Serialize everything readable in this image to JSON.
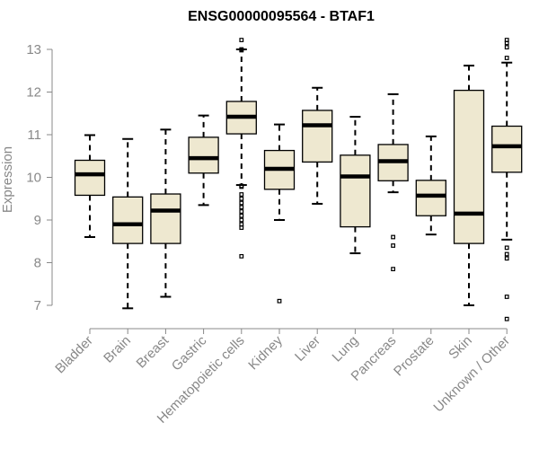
{
  "chart_data": {
    "type": "boxplot",
    "title": "ENSG00000095564 - BTAF1",
    "xlabel": "",
    "ylabel": "Expression",
    "ylim": [
      6.6,
      13.25
    ],
    "yticks": [
      7,
      8,
      9,
      10,
      11,
      12,
      13
    ],
    "grid": false,
    "box_color": "#EEE8D0",
    "categories": [
      "Bladder",
      "Brain",
      "Breast",
      "Gastric",
      "Hematopoietic cells",
      "Kidney",
      "Liver",
      "Lung",
      "Pancreas",
      "Prostate",
      "Skin",
      "Unknown / Other"
    ],
    "boxes": [
      {
        "name": "Bladder",
        "whisker_low": 8.6,
        "q1": 9.58,
        "median": 10.07,
        "q3": 10.4,
        "whisker_high": 10.99,
        "outliers": []
      },
      {
        "name": "Brain",
        "whisker_low": 6.93,
        "q1": 8.45,
        "median": 8.9,
        "q3": 9.54,
        "whisker_high": 10.9,
        "outliers": []
      },
      {
        "name": "Breast",
        "whisker_low": 7.2,
        "q1": 8.45,
        "median": 9.22,
        "q3": 9.61,
        "whisker_high": 11.12,
        "outliers": []
      },
      {
        "name": "Gastric",
        "whisker_low": 9.35,
        "q1": 10.1,
        "median": 10.45,
        "q3": 10.94,
        "whisker_high": 11.45,
        "outliers": []
      },
      {
        "name": "Hematopoietic cells",
        "whisker_low": 9.82,
        "q1": 11.02,
        "median": 11.42,
        "q3": 11.78,
        "whisker_high": 13.0,
        "outliers": [
          13.22,
          13.0,
          12.98,
          9.8,
          9.78,
          9.6,
          9.5,
          9.4,
          9.3,
          9.2,
          9.1,
          9.0,
          8.9,
          8.82,
          8.15
        ]
      },
      {
        "name": "Kidney",
        "whisker_low": 9.0,
        "q1": 9.72,
        "median": 10.2,
        "q3": 10.63,
        "whisker_high": 11.24,
        "outliers": [
          7.1
        ]
      },
      {
        "name": "Liver",
        "whisker_low": 9.38,
        "q1": 10.36,
        "median": 11.22,
        "q3": 11.57,
        "whisker_high": 12.1,
        "outliers": []
      },
      {
        "name": "Lung",
        "whisker_low": 8.22,
        "q1": 8.84,
        "median": 10.02,
        "q3": 10.52,
        "whisker_high": 11.42,
        "outliers": []
      },
      {
        "name": "Pancreas",
        "whisker_low": 9.65,
        "q1": 9.92,
        "median": 10.38,
        "q3": 10.77,
        "whisker_high": 11.95,
        "outliers": [
          8.6,
          8.4,
          7.85
        ]
      },
      {
        "name": "Prostate",
        "whisker_low": 8.66,
        "q1": 9.1,
        "median": 9.57,
        "q3": 9.93,
        "whisker_high": 10.96,
        "outliers": []
      },
      {
        "name": "Skin",
        "whisker_low": 7.0,
        "q1": 8.45,
        "median": 9.15,
        "q3": 12.04,
        "whisker_high": 12.62,
        "outliers": []
      },
      {
        "name": "Unknown / Other",
        "whisker_low": 8.54,
        "q1": 10.12,
        "median": 10.73,
        "q3": 11.2,
        "whisker_high": 12.69,
        "outliers": [
          13.22,
          13.15,
          13.05,
          12.8,
          8.35,
          8.2,
          8.1,
          7.2,
          6.68
        ]
      }
    ]
  }
}
